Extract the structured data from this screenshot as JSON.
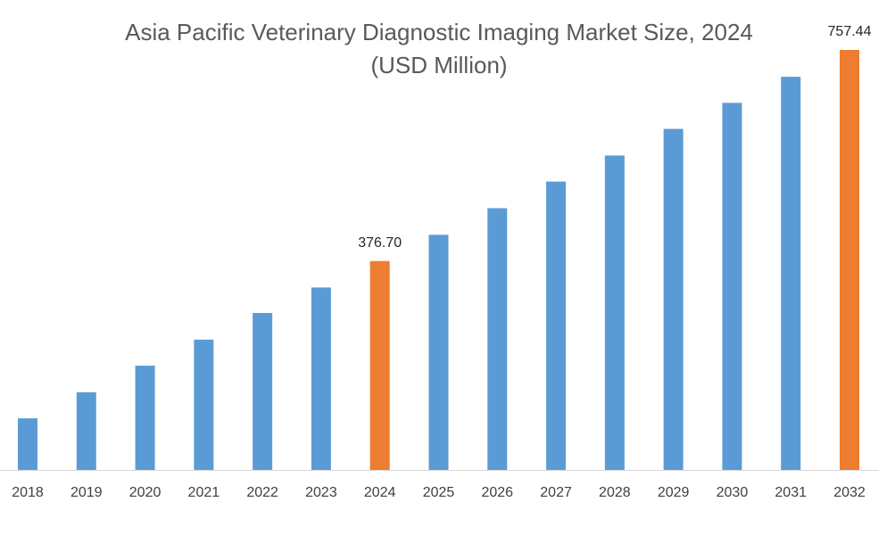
{
  "chart_data": {
    "type": "bar",
    "title": "Asia Pacific Veterinary Diagnostic Imaging  Market Size, 2024",
    "subtitle": "(USD Million)",
    "categories": [
      "2018",
      "2019",
      "2020",
      "2021",
      "2022",
      "2023",
      "2024",
      "2025",
      "2026",
      "2027",
      "2028",
      "2029",
      "2030",
      "2031",
      "2032"
    ],
    "values": [
      93,
      140,
      188,
      235,
      283,
      329,
      376.7,
      424,
      472,
      520,
      567,
      615,
      662,
      709,
      757.44
    ],
    "value_labels": [
      null,
      null,
      null,
      null,
      null,
      null,
      "376.70",
      null,
      null,
      null,
      null,
      null,
      null,
      null,
      "757.44"
    ],
    "colors": [
      "#5b9bd5",
      "#5b9bd5",
      "#5b9bd5",
      "#5b9bd5",
      "#5b9bd5",
      "#5b9bd5",
      "#ed7d31",
      "#5b9bd5",
      "#5b9bd5",
      "#5b9bd5",
      "#5b9bd5",
      "#5b9bd5",
      "#5b9bd5",
      "#5b9bd5",
      "#ed7d31"
    ],
    "grid": false
  }
}
